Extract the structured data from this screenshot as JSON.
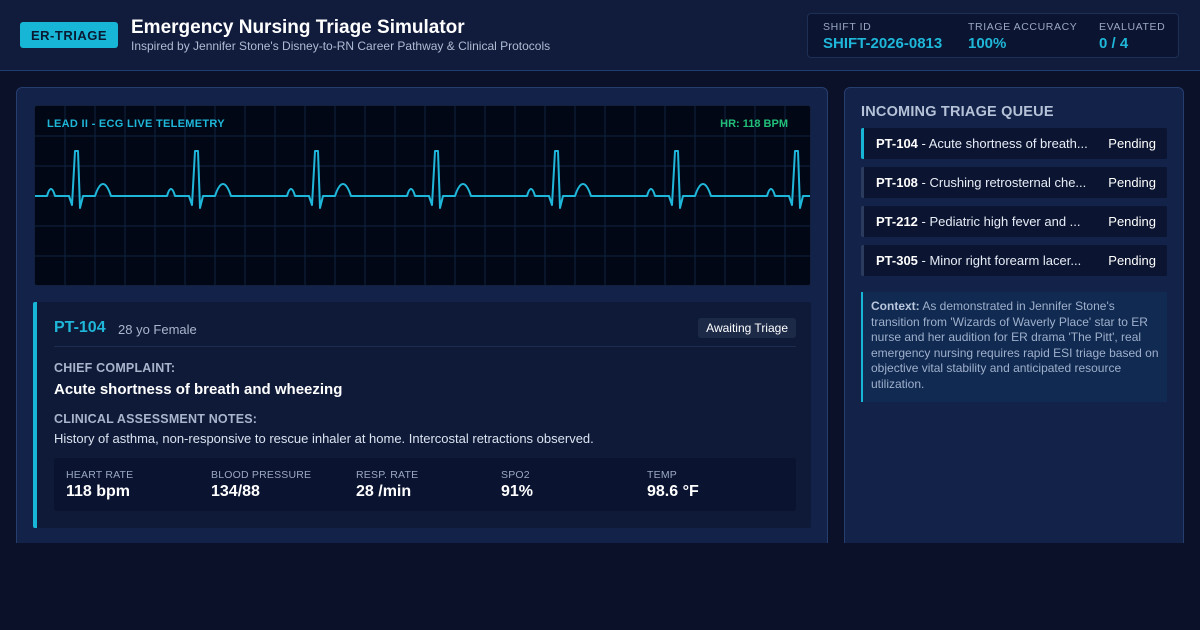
{
  "header": {
    "badge": "ER-TRIAGE",
    "title": "Emergency Nursing Triage Simulator",
    "subtitle": "Inspired by Jennifer Stone's Disney-to-RN Career Pathway & Clinical Protocols",
    "stats": [
      {
        "label": "SHIFT ID",
        "value": "SHIFT-2026-0813"
      },
      {
        "label": "TRIAGE ACCURACY",
        "value": "100%"
      },
      {
        "label": "EVALUATED",
        "value": "0 / 4"
      }
    ]
  },
  "monitor": {
    "lead_label": "LEAD II - ECG LIVE TELEMETRY",
    "hr_label": "HR: 118 BPM",
    "trace_color": "#1fb7d9"
  },
  "patient": {
    "id": "PT-104",
    "demographics": "28 yo Female",
    "status": "Awaiting Triage",
    "chief_complaint_label": "CHIEF COMPLAINT:",
    "chief_complaint": "Acute shortness of breath and wheezing",
    "notes_label": "CLINICAL ASSESSMENT NOTES:",
    "notes": "History of asthma, non-responsive to rescue inhaler at home. Intercostal retractions observed.",
    "vitals": [
      {
        "label": "HEART RATE",
        "value": "118 bpm"
      },
      {
        "label": "BLOOD PRESSURE",
        "value": "134/88"
      },
      {
        "label": "RESP. RATE",
        "value": "28 /min"
      },
      {
        "label": "SPO2",
        "value": "91%"
      },
      {
        "label": "TEMP",
        "value": "98.6 °F"
      }
    ]
  },
  "queue": {
    "title": "INCOMING TRIAGE QUEUE",
    "items": [
      {
        "id": "PT-104",
        "text": " - Acute shortness of breath...",
        "status": "Pending"
      },
      {
        "id": "PT-108",
        "text": " - Crushing retrosternal che...",
        "status": "Pending"
      },
      {
        "id": "PT-212",
        "text": " - Pediatric high fever and ...",
        "status": "Pending"
      },
      {
        "id": "PT-305",
        "text": " - Minor right forearm lacer...",
        "status": "Pending"
      }
    ]
  },
  "context": {
    "label": "Context:",
    "text": " As demonstrated in Jennifer Stone's transition from 'Wizards of Waverly Place' star to ER nurse and her audition for ER drama 'The Pitt', real emergency nursing requires rapid ESI triage based on objective vital stability and anticipated resource utilization."
  },
  "colors": {
    "accent": "#17b6d6",
    "hr_green": "#22c07a",
    "background": "#0a1128"
  }
}
